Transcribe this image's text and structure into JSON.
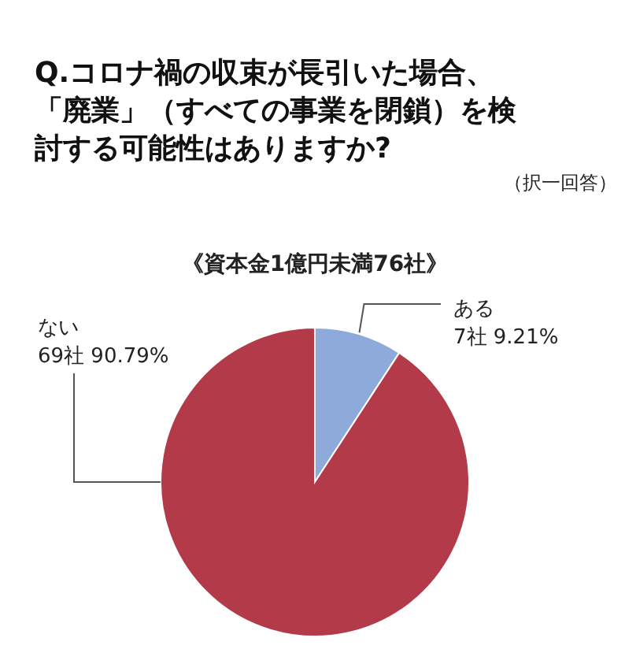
{
  "chart_data": {
    "type": "pie",
    "title": "Q.コロナ禍の収束が長引いた場合、「廃業」（すべての事業を閉鎖）を検討する可能性はありますか?",
    "subtitle": "《資本金1億円未満76社》",
    "annotations": [
      "（択一回答）"
    ],
    "categories": [
      "ある",
      "ない"
    ],
    "values": [
      9.21,
      90.79
    ],
    "colors": [
      "#8eaadb",
      "#b33a48"
    ],
    "value_labels": [
      "7社 9.21%",
      "69社 90.79%"
    ]
  }
}
